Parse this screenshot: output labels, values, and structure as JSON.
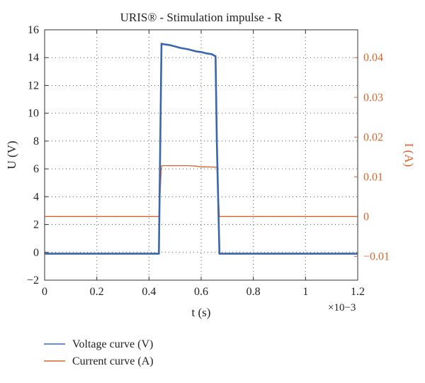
{
  "chart_data": {
    "type": "line",
    "title": "URIS® - Stimulation impulse - R",
    "xlabel": "t (s)",
    "ylabel": "U (V)",
    "y2label": "I (A)",
    "x_multiplier": "×10−3",
    "xlim": [
      0,
      1.2
    ],
    "ylim": [
      -2,
      16
    ],
    "y2lim": [
      -0.016,
      0.047
    ],
    "x_ticks": [
      0,
      0.2,
      0.4,
      0.6,
      0.8,
      1,
      1.2
    ],
    "x_tick_labels": [
      "0",
      "0.2",
      "0.4",
      "0.6",
      "0.8",
      "1",
      "1.2"
    ],
    "y_ticks": [
      -2,
      0,
      2,
      4,
      6,
      8,
      10,
      12,
      14,
      16
    ],
    "y_tick_labels": [
      "−2",
      "0",
      "2",
      "4",
      "6",
      "8",
      "10",
      "12",
      "14",
      "16"
    ],
    "y2_ticks": [
      -0.01,
      0,
      0.01,
      0.02,
      0.03,
      0.04
    ],
    "y2_tick_labels": [
      "−0.01",
      "0",
      "0.01",
      "0.02",
      "0.03",
      "0.04"
    ],
    "grid": true,
    "legend_position": "bottom-left, outside plot",
    "series": [
      {
        "name": "Voltage curve (V)",
        "axis": "left",
        "color": "#3a66b0",
        "x": [
          0,
          0.1,
          0.2,
          0.3,
          0.4,
          0.438,
          0.448,
          0.46,
          0.48,
          0.5,
          0.52,
          0.55,
          0.58,
          0.6,
          0.62,
          0.64,
          0.655,
          0.66,
          0.67,
          0.7,
          0.8,
          0.9,
          1.0,
          1.1,
          1.2
        ],
        "y": [
          -0.1,
          -0.1,
          -0.1,
          -0.1,
          -0.1,
          -0.1,
          15.0,
          14.95,
          14.9,
          14.8,
          14.7,
          14.6,
          14.45,
          14.4,
          14.3,
          14.25,
          14.1,
          8,
          -0.1,
          -0.1,
          -0.1,
          -0.1,
          -0.1,
          -0.1,
          -0.1
        ]
      },
      {
        "name": "Current curve (A)",
        "axis": "right",
        "color": "#d8642c",
        "x": [
          0,
          0.2,
          0.4,
          0.438,
          0.448,
          0.5,
          0.55,
          0.58,
          0.6,
          0.63,
          0.66,
          0.67,
          0.8,
          1.0,
          1.2
        ],
        "y": [
          0,
          0,
          0,
          0,
          0.0128,
          0.0128,
          0.0128,
          0.0127,
          0.0125,
          0.0125,
          0.0124,
          0,
          0,
          0,
          0
        ]
      }
    ]
  }
}
